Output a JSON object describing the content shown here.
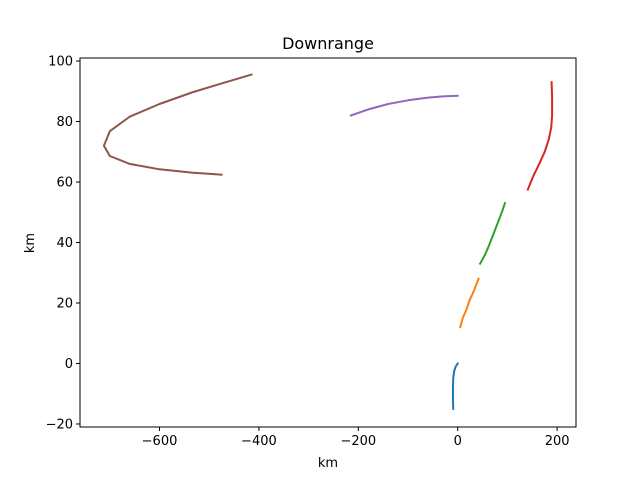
{
  "chart_data": {
    "type": "line",
    "title": "Downrange",
    "xlabel": "km",
    "ylabel": "km",
    "xlim": [
      -760,
      238
    ],
    "ylim": [
      -21,
      101
    ],
    "xticks": [
      -600,
      -400,
      -200,
      0,
      200
    ],
    "yticks": [
      -20,
      0,
      20,
      40,
      60,
      80,
      100
    ],
    "xtick_labels": [
      "−600",
      "−400",
      "−200",
      "0",
      "200"
    ],
    "ytick_labels": [
      "−20",
      "0",
      "20",
      "40",
      "60",
      "80",
      "100"
    ],
    "grid": false,
    "legend": "none",
    "series": [
      {
        "color": "#1f77b4",
        "x": [
          0,
          -4,
          -7,
          -9,
          -9.5,
          -9.5,
          -9
        ],
        "y": [
          0,
          -1,
          -2.5,
          -5,
          -8,
          -11.5,
          -15
        ]
      },
      {
        "color": "#ff7f0e",
        "x": [
          5,
          10,
          18,
          24,
          30,
          36,
          42
        ],
        "y": [
          12,
          15,
          18,
          21,
          23,
          25.5,
          28
        ]
      },
      {
        "color": "#2ca02c",
        "x": [
          45,
          55,
          63,
          70,
          77,
          84,
          90,
          95
        ],
        "y": [
          33,
          36,
          39,
          42,
          45,
          48,
          50.5,
          53
        ]
      },
      {
        "color": "#d62728",
        "x": [
          141,
          152,
          164,
          175,
          183,
          188,
          190,
          190,
          189
        ],
        "y": [
          57.5,
          62,
          66,
          70,
          74,
          78,
          82,
          88,
          93
        ]
      },
      {
        "color": "#9467bd",
        "x": [
          -215,
          -180,
          -140,
          -100,
          -60,
          -30,
          0
        ],
        "y": [
          82,
          84,
          85.8,
          87,
          87.9,
          88.3,
          88.5
        ]
      },
      {
        "color": "#8c564b",
        "x": [
          -415,
          -475,
          -535,
          -600,
          -660,
          -700,
          -712,
          -700,
          -660,
          -600,
          -535,
          -475
        ],
        "y": [
          95.5,
          92.6,
          89.6,
          85.8,
          81.6,
          76.8,
          72,
          68.6,
          66,
          64.2,
          63.1,
          62.4
        ]
      }
    ]
  }
}
